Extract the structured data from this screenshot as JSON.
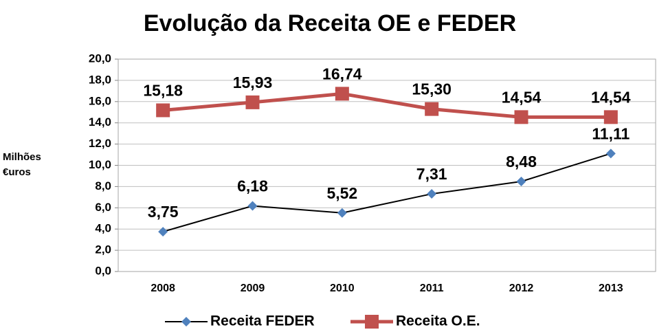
{
  "chart_data": {
    "type": "line",
    "title": "Evolução da Receita OE e FEDER",
    "y_label": "Milhões €uros",
    "categories": [
      "2008",
      "2009",
      "2010",
      "2011",
      "2012",
      "2013"
    ],
    "series": [
      {
        "name": "Receita FEDER",
        "color": "#000000",
        "marker_color": "#4f81bd",
        "marker": "diamond",
        "values": [
          3.75,
          6.18,
          5.52,
          7.31,
          8.48,
          11.11
        ],
        "value_labels": [
          "3,75",
          "6,18",
          "5,52",
          "7,31",
          "8,48",
          "11,11"
        ]
      },
      {
        "name": "Receita O.E.",
        "color": "#c0504d",
        "marker_color": "#c0504d",
        "marker": "square",
        "values": [
          15.18,
          15.93,
          16.74,
          15.3,
          14.54,
          14.54
        ],
        "value_labels": [
          "15,18",
          "15,93",
          "16,74",
          "15,30",
          "14,54",
          "14,54"
        ]
      }
    ],
    "ylim": [
      0,
      20
    ],
    "yticks": [
      {
        "value": 0,
        "label": "0,0"
      },
      {
        "value": 2,
        "label": "2,0"
      },
      {
        "value": 4,
        "label": "4,0"
      },
      {
        "value": 6,
        "label": "6,0"
      },
      {
        "value": 8,
        "label": "8,0"
      },
      {
        "value": 10,
        "label": "10,0"
      },
      {
        "value": 12,
        "label": "12,0"
      },
      {
        "value": 14,
        "label": "14,0"
      },
      {
        "value": 16,
        "label": "16,0"
      },
      {
        "value": 18,
        "label": "18,0"
      },
      {
        "value": 20,
        "label": "20,0"
      }
    ],
    "grid": true,
    "legend": "bottom"
  }
}
